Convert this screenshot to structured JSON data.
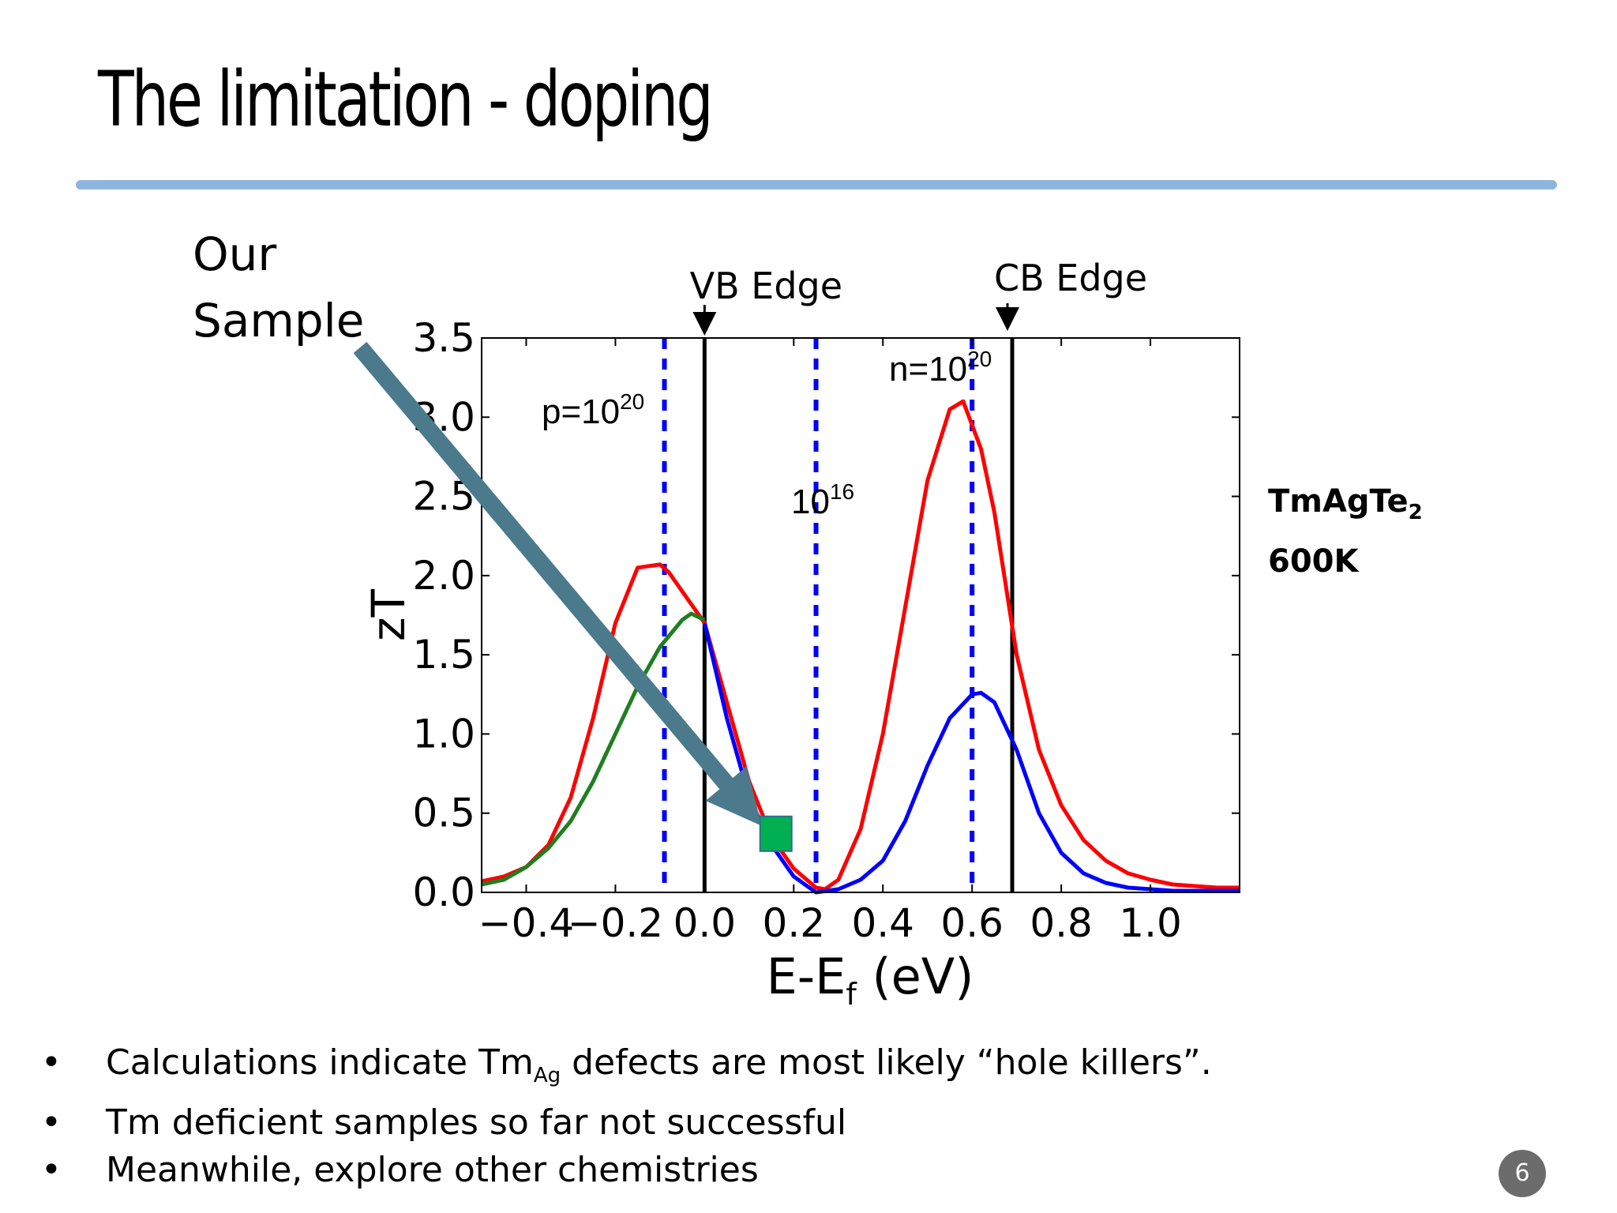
{
  "slide": {
    "title": "The limitation - doping",
    "callout_line1": "Our",
    "callout_line2": "Sample",
    "material_prefix": "TmAgTe",
    "material_subscript": "2",
    "temperature": "600K",
    "page_number": "6"
  },
  "bullets": [
    {
      "prefix": "Calculations indicate Tm",
      "subscript": "Ag",
      "suffix": " defects are most likely “hole killers”."
    },
    {
      "text": "Tm deficient samples so far not successful"
    },
    {
      "text": "Meanwhile, explore other chemistries"
    }
  ],
  "chart_data": {
    "type": "line",
    "title": "",
    "xlabel": "E-E",
    "xlabel_sub": "f",
    "xlabel_unit": " (eV)",
    "ylabel": "zT",
    "xlim": [
      -0.5,
      1.2
    ],
    "ylim": [
      0,
      3.5
    ],
    "xticks": [
      -0.4,
      -0.2,
      0.0,
      0.2,
      0.4,
      0.6,
      0.8,
      1.0
    ],
    "xtick_labels": [
      "−0.4",
      "−0.2",
      "0.0",
      "0.2",
      "0.4",
      "0.6",
      "0.8",
      "1.0"
    ],
    "yticks": [
      0.0,
      0.5,
      1.0,
      1.5,
      2.0,
      2.5,
      3.0,
      3.5
    ],
    "ytick_labels": [
      "0.0",
      "0.5",
      "1.0",
      "1.5",
      "2.0",
      "2.5",
      "3.0",
      "3.5"
    ],
    "series": [
      {
        "color": "#ff0000",
        "x": [
          -0.5,
          -0.45,
          -0.4,
          -0.35,
          -0.3,
          -0.25,
          -0.2,
          -0.15,
          -0.1,
          -0.08,
          -0.05,
          0.0,
          0.05,
          0.1,
          0.15,
          0.2,
          0.25,
          0.27,
          0.3,
          0.35,
          0.4,
          0.45,
          0.5,
          0.55,
          0.58,
          0.62,
          0.65,
          0.7,
          0.75,
          0.8,
          0.85,
          0.9,
          0.95,
          1.0,
          1.05,
          1.1,
          1.15,
          1.2
        ],
        "y": [
          0.07,
          0.1,
          0.16,
          0.3,
          0.6,
          1.1,
          1.7,
          2.05,
          2.07,
          2.02,
          1.9,
          1.7,
          1.2,
          0.7,
          0.35,
          0.15,
          0.03,
          0.02,
          0.08,
          0.4,
          1.0,
          1.8,
          2.6,
          3.05,
          3.1,
          2.8,
          2.4,
          1.5,
          0.9,
          0.55,
          0.33,
          0.2,
          0.12,
          0.08,
          0.05,
          0.04,
          0.03,
          0.03
        ]
      },
      {
        "color": "#0000ff",
        "x": [
          0.0,
          0.05,
          0.1,
          0.15,
          0.2,
          0.25,
          0.3,
          0.35,
          0.4,
          0.45,
          0.5,
          0.55,
          0.6,
          0.62,
          0.65,
          0.7,
          0.75,
          0.8,
          0.85,
          0.9,
          0.95,
          1.0,
          1.05,
          1.1,
          1.15,
          1.2
        ],
        "y": [
          1.7,
          1.1,
          0.6,
          0.3,
          0.1,
          0.0,
          0.02,
          0.08,
          0.2,
          0.45,
          0.8,
          1.1,
          1.25,
          1.26,
          1.2,
          0.9,
          0.5,
          0.25,
          0.12,
          0.06,
          0.03,
          0.02,
          0.01,
          0.01,
          0.01,
          0.01
        ]
      },
      {
        "color": "#1f7f1f",
        "x": [
          -0.5,
          -0.45,
          -0.4,
          -0.35,
          -0.3,
          -0.25,
          -0.2,
          -0.15,
          -0.1,
          -0.05,
          -0.03,
          0.0
        ],
        "y": [
          0.05,
          0.08,
          0.16,
          0.28,
          0.45,
          0.7,
          1.0,
          1.3,
          1.55,
          1.72,
          1.76,
          1.72
        ]
      }
    ],
    "vlines_black": [
      0.0,
      0.69
    ],
    "vlines_dashed_blue": [
      -0.09,
      0.25,
      0.6
    ],
    "annotations": {
      "vb_edge": "VB Edge",
      "cb_edge": "CB Edge",
      "p_label": "p=10",
      "p_exp": "20",
      "n_label": "n=10",
      "n_exp": "20",
      "mid_label": "10",
      "mid_exp": "16"
    },
    "sample_point": {
      "x": 0.16,
      "y": 0.37,
      "color": "#00b050"
    },
    "arrow_color": "#4a7a8c"
  }
}
